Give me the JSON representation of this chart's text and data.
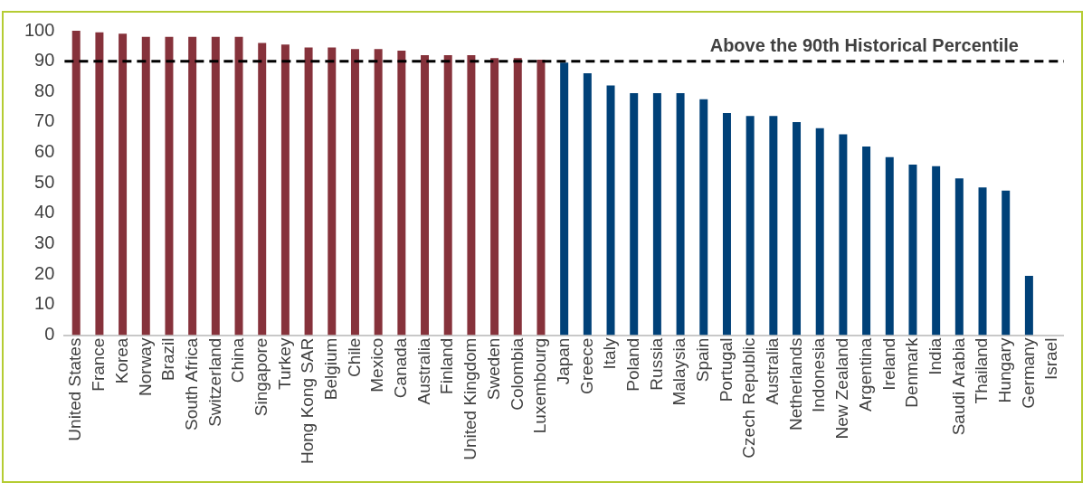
{
  "chart_data": {
    "type": "bar",
    "categories": [
      "United States",
      "France",
      "Korea",
      "Norway",
      "Brazil",
      "South Africa",
      "Switzerland",
      "China",
      "Singapore",
      "Turkey",
      "Hong Kong SAR",
      "Belgium",
      "Chile",
      "Mexico",
      "Canada",
      "Australia",
      "Finland",
      "United Kingdom",
      "Sweden",
      "Colombia",
      "Luxembourg",
      "Japan",
      "Greece",
      "Italy",
      "Poland",
      "Russia",
      "Malaysia",
      "Spain",
      "Portugal",
      "Czech Republic",
      "Australia",
      "Netherlands",
      "Indonesia",
      "New Zealand",
      "Argentina",
      "Ireland",
      "Denmark",
      "India",
      "Saudi Arabia",
      "Thailand",
      "Hungary",
      "Germany",
      "Israel"
    ],
    "values": [
      100,
      99.5,
      99,
      98,
      98,
      98,
      98,
      98,
      96,
      95.5,
      94.5,
      94.5,
      94,
      94,
      93.5,
      92,
      92,
      92,
      91,
      91,
      90.5,
      89.5,
      86,
      82,
      79.5,
      79.5,
      79.5,
      77.5,
      73,
      72,
      72,
      70,
      68,
      66,
      62,
      58.5,
      56,
      55.5,
      51.5,
      48.5,
      47.5,
      19.5,
      0
    ],
    "colors": [
      "#86323b",
      "#86323b",
      "#86323b",
      "#86323b",
      "#86323b",
      "#86323b",
      "#86323b",
      "#86323b",
      "#86323b",
      "#86323b",
      "#86323b",
      "#86323b",
      "#86323b",
      "#86323b",
      "#86323b",
      "#86323b",
      "#86323b",
      "#86323b",
      "#86323b",
      "#86323b",
      "#86323b",
      "#004178",
      "#004178",
      "#004178",
      "#004178",
      "#004178",
      "#004178",
      "#004178",
      "#004178",
      "#004178",
      "#004178",
      "#004178",
      "#004178",
      "#004178",
      "#004178",
      "#004178",
      "#004178",
      "#004178",
      "#004178",
      "#004178",
      "#004178",
      "#004178",
      "#004178"
    ],
    "ylim": [
      0,
      100
    ],
    "yticks": [
      0,
      10,
      20,
      30,
      40,
      50,
      60,
      70,
      80,
      90,
      100
    ],
    "grid": false,
    "legend": false,
    "ref_lines": [
      {
        "axis": "y",
        "value": 90,
        "label": "Above the 90th Historical Percentile",
        "color": "#000000",
        "line_style": "dashed"
      }
    ]
  }
}
